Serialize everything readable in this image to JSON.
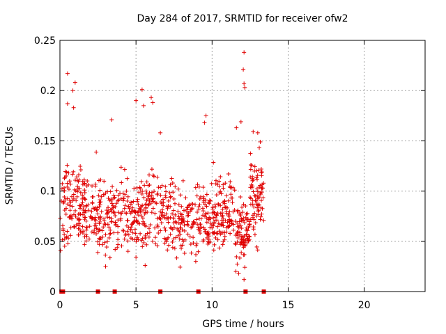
{
  "chart_data": {
    "type": "scatter",
    "title": "Day 284 of 2017, SRMTID for receiver ofw2",
    "xlabel": "GPS time / hours",
    "ylabel": "SRMTID / TECUs",
    "xlim": [
      0,
      24
    ],
    "ylim": [
      0,
      0.25
    ],
    "x_ticks": [
      0,
      5,
      10,
      15,
      20
    ],
    "x_tick_labels": [
      "0",
      "5",
      "10",
      "15",
      "20"
    ],
    "y_ticks": [
      0,
      0.05,
      0.1,
      0.15,
      0.2,
      0.25
    ],
    "y_tick_labels": [
      "0",
      "0.05",
      "0.1",
      "0.15",
      "0.2",
      "0.25"
    ],
    "grid": true,
    "marker": "+",
    "color": "#e00000",
    "baseline_markers_x": [
      0.1,
      0.2,
      2.5,
      3.6,
      6.6,
      9.1,
      12.2,
      13.4
    ],
    "highlight_points": [
      {
        "x": 0.5,
        "y": 0.217
      },
      {
        "x": 1.0,
        "y": 0.208
      },
      {
        "x": 0.85,
        "y": 0.2
      },
      {
        "x": 0.5,
        "y": 0.187
      },
      {
        "x": 0.9,
        "y": 0.183
      },
      {
        "x": 3.4,
        "y": 0.171
      },
      {
        "x": 5.4,
        "y": 0.201
      },
      {
        "x": 5.0,
        "y": 0.19
      },
      {
        "x": 5.5,
        "y": 0.185
      },
      {
        "x": 6.0,
        "y": 0.193
      },
      {
        "x": 6.1,
        "y": 0.188
      },
      {
        "x": 6.6,
        "y": 0.158
      },
      {
        "x": 9.6,
        "y": 0.175
      },
      {
        "x": 9.5,
        "y": 0.168
      },
      {
        "x": 12.1,
        "y": 0.238
      },
      {
        "x": 12.05,
        "y": 0.221
      },
      {
        "x": 12.1,
        "y": 0.207
      },
      {
        "x": 12.15,
        "y": 0.203
      },
      {
        "x": 11.9,
        "y": 0.169
      },
      {
        "x": 11.6,
        "y": 0.163
      },
      {
        "x": 12.7,
        "y": 0.159
      },
      {
        "x": 13.0,
        "y": 0.158
      },
      {
        "x": 13.1,
        "y": 0.143
      },
      {
        "x": 12.1,
        "y": 0.012
      },
      {
        "x": 11.75,
        "y": 0.018
      },
      {
        "x": 3.0,
        "y": 0.025
      },
      {
        "x": 5.6,
        "y": 0.026
      }
    ],
    "clusters": [
      {
        "x_from": 0.0,
        "x_to": 2.5,
        "y_center": 0.085,
        "y_spread": 0.035,
        "count": 180
      },
      {
        "x_from": 2.5,
        "x_to": 5.0,
        "y_center": 0.075,
        "y_spread": 0.03,
        "count": 170
      },
      {
        "x_from": 5.0,
        "x_to": 7.5,
        "y_center": 0.08,
        "y_spread": 0.035,
        "count": 170
      },
      {
        "x_from": 7.5,
        "x_to": 10.0,
        "y_center": 0.07,
        "y_spread": 0.03,
        "count": 160
      },
      {
        "x_from": 10.0,
        "x_to": 11.5,
        "y_center": 0.08,
        "y_spread": 0.03,
        "count": 120
      },
      {
        "x_from": 11.5,
        "x_to": 12.5,
        "y_center": 0.06,
        "y_spread": 0.03,
        "count": 90
      },
      {
        "x_from": 12.5,
        "x_to": 13.4,
        "y_center": 0.09,
        "y_spread": 0.035,
        "count": 80
      }
    ]
  }
}
